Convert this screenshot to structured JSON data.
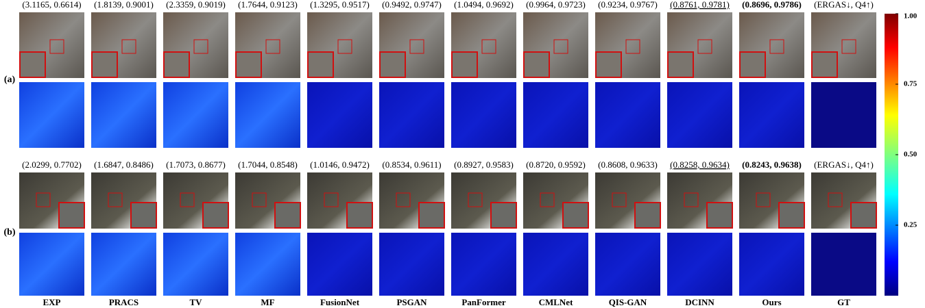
{
  "panels": [
    {
      "label": "(a)",
      "metrics": [
        "(3.1165, 0.6614)",
        "(1.8139, 0.9001)",
        "(2.3359, 0.9019)",
        "(1.7644, 0.9123)",
        "(1.3295, 0.9517)",
        "(0.9492, 0.9747)",
        "(1.0494, 0.9692)",
        "(0.9964, 0.9723)",
        "(0.9234, 0.9767)",
        "(0.8761, 0.9781)",
        "(0.8696, 0.9786)",
        "(ERGAS↓, Q4↑)"
      ]
    },
    {
      "label": "(b)",
      "metrics": [
        "(2.0299, 0.7702)",
        "(1.6847, 0.8486)",
        "(1.7073, 0.8677)",
        "(1.7044, 0.8548)",
        "(1.0146, 0.9472)",
        "(0.8534, 0.9611)",
        "(0.8927, 0.9583)",
        "(0.8720, 0.9592)",
        "(0.8608, 0.9633)",
        "(0.8258, 0.9634)",
        "(0.8243, 0.9638)",
        "(ERGAS↓, Q4↑)"
      ]
    }
  ],
  "methods": [
    "EXP",
    "PRACS",
    "TV",
    "MF",
    "FusionNet",
    "PSGAN",
    "PanFormer",
    "CMLNet",
    "QIS-GAN",
    "DCINN",
    "Ours",
    "GT"
  ],
  "colorbar": {
    "lim": [
      0,
      1
    ],
    "ticks": [
      {
        "value": 1,
        "label": "1.00"
      },
      0.75,
      {
        "value": 0.5,
        "label": "0.50"
      },
      0.25
    ]
  }
}
